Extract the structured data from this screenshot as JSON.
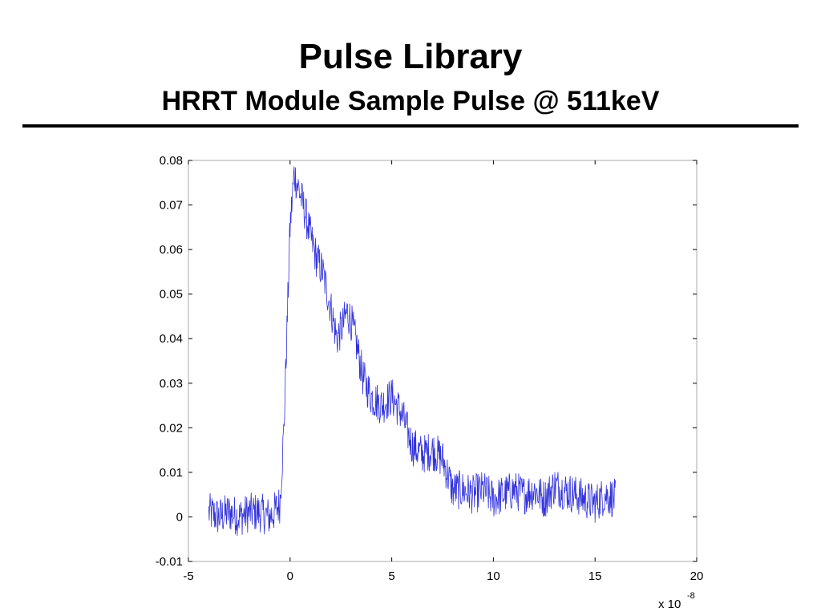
{
  "slide": {
    "title": "Pulse Library",
    "subtitle": "HRRT Module Sample Pulse @ 511keV"
  },
  "colors": {
    "trace": "#3333dd",
    "axis": "#000000",
    "background": "#ffffff"
  },
  "chart_data": {
    "type": "line",
    "title": "",
    "xlabel": "",
    "ylabel": "",
    "x_multiplier_label": "x 10",
    "x_multiplier_exponent": "-8",
    "xlim": [
      -5,
      20
    ],
    "ylim": [
      -0.01,
      0.08
    ],
    "xticks": [
      "-5",
      "0",
      "5",
      "10",
      "15",
      "20"
    ],
    "yticks": [
      "-0.01",
      "0",
      "0.01",
      "0.02",
      "0.03",
      "0.04",
      "0.05",
      "0.06",
      "0.07",
      "0.08"
    ],
    "grid": false,
    "legend": "none",
    "series": [
      {
        "name": "",
        "x": [
          -4,
          -3.5,
          -3,
          -2.5,
          -2,
          -1.5,
          -1,
          -0.8,
          -0.5,
          -0.3,
          -0.1,
          0,
          0.2,
          0.4,
          0.7,
          1,
          1.3,
          1.6,
          2,
          2.3,
          2.6,
          2.8,
          3,
          3.3,
          3.6,
          4,
          4.5,
          5,
          5.5,
          6,
          6.5,
          7,
          7.5,
          8,
          8.5,
          9,
          9.5,
          10,
          10.5,
          11,
          11.5,
          12,
          12.5,
          13,
          13.5,
          14,
          14.5,
          15,
          15.5,
          16
        ],
        "y": [
          0.001,
          0.0,
          0.001,
          0.0,
          0.001,
          0.001,
          0.0,
          0.001,
          0.003,
          0.02,
          0.05,
          0.065,
          0.077,
          0.074,
          0.069,
          0.063,
          0.058,
          0.055,
          0.047,
          0.04,
          0.043,
          0.046,
          0.044,
          0.038,
          0.031,
          0.027,
          0.025,
          0.027,
          0.023,
          0.016,
          0.014,
          0.015,
          0.013,
          0.006,
          0.006,
          0.005,
          0.006,
          0.004,
          0.005,
          0.006,
          0.005,
          0.006,
          0.004,
          0.007,
          0.006,
          0.005,
          0.004,
          0.003,
          0.005,
          0.004
        ]
      }
    ]
  }
}
